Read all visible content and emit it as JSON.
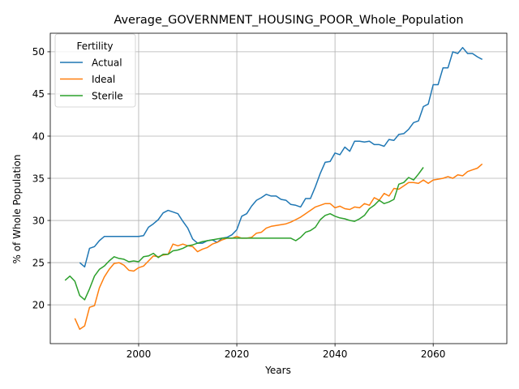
{
  "chart_data": {
    "type": "line",
    "title": "Average_GOVERNMENT_HOUSING_POOR_Whole_Population",
    "xlabel": "Years",
    "ylabel": "% of Whole Population",
    "xlim": [
      1982,
      2075
    ],
    "ylim": [
      15.4,
      52.2
    ],
    "x_ticks": [
      2000,
      2020,
      2040,
      2060
    ],
    "y_ticks": [
      20,
      25,
      30,
      35,
      40,
      45,
      50
    ],
    "grid": true,
    "legend": {
      "title": "Fertility",
      "placement": "top-left"
    },
    "series": [
      {
        "name": "Actual",
        "color": "#1f77b4",
        "points": [
          [
            1988,
            25.0
          ],
          [
            1989,
            24.5
          ],
          [
            1990,
            26.7
          ],
          [
            1991,
            26.9
          ],
          [
            1992,
            27.6
          ],
          [
            1993,
            28.1
          ],
          [
            1994,
            28.1
          ],
          [
            1995,
            28.1
          ],
          [
            1996,
            28.1
          ],
          [
            1997,
            28.1
          ],
          [
            1998,
            28.1
          ],
          [
            1999,
            28.1
          ],
          [
            2000,
            28.1
          ],
          [
            2001,
            28.2
          ],
          [
            2002,
            29.2
          ],
          [
            2003,
            29.6
          ],
          [
            2004,
            30.1
          ],
          [
            2005,
            30.9
          ],
          [
            2006,
            31.2
          ],
          [
            2007,
            31.0
          ],
          [
            2008,
            30.8
          ],
          [
            2009,
            29.9
          ],
          [
            2010,
            29.1
          ],
          [
            2011,
            27.8
          ],
          [
            2012,
            27.3
          ],
          [
            2013,
            27.3
          ],
          [
            2014,
            27.6
          ],
          [
            2015,
            27.7
          ],
          [
            2016,
            27.4
          ],
          [
            2017,
            27.9
          ],
          [
            2018,
            28.0
          ],
          [
            2019,
            28.3
          ],
          [
            2020,
            28.9
          ],
          [
            2021,
            30.5
          ],
          [
            2022,
            30.8
          ],
          [
            2023,
            31.7
          ],
          [
            2024,
            32.4
          ],
          [
            2025,
            32.7
          ],
          [
            2026,
            33.1
          ],
          [
            2027,
            32.9
          ],
          [
            2028,
            32.9
          ],
          [
            2029,
            32.5
          ],
          [
            2030,
            32.4
          ],
          [
            2031,
            31.9
          ],
          [
            2032,
            31.8
          ],
          [
            2033,
            31.6
          ],
          [
            2034,
            32.6
          ],
          [
            2035,
            32.6
          ],
          [
            2036,
            34.0
          ],
          [
            2037,
            35.6
          ],
          [
            2038,
            36.9
          ],
          [
            2039,
            37.0
          ],
          [
            2040,
            38.0
          ],
          [
            2041,
            37.8
          ],
          [
            2042,
            38.7
          ],
          [
            2043,
            38.2
          ],
          [
            2044,
            39.4
          ],
          [
            2045,
            39.4
          ],
          [
            2046,
            39.3
          ],
          [
            2047,
            39.4
          ],
          [
            2048,
            39.0
          ],
          [
            2049,
            39.0
          ],
          [
            2050,
            38.8
          ],
          [
            2051,
            39.6
          ],
          [
            2052,
            39.5
          ],
          [
            2053,
            40.2
          ],
          [
            2054,
            40.3
          ],
          [
            2055,
            40.8
          ],
          [
            2056,
            41.6
          ],
          [
            2057,
            41.8
          ],
          [
            2058,
            43.5
          ],
          [
            2059,
            43.8
          ],
          [
            2060,
            46.1
          ],
          [
            2061,
            46.1
          ],
          [
            2062,
            48.1
          ],
          [
            2063,
            48.1
          ],
          [
            2064,
            50.0
          ],
          [
            2065,
            49.8
          ],
          [
            2066,
            50.5
          ],
          [
            2067,
            49.8
          ],
          [
            2068,
            49.8
          ],
          [
            2069,
            49.4
          ],
          [
            2070,
            49.1
          ]
        ]
      },
      {
        "name": "Ideal",
        "color": "#ff7f0e",
        "points": [
          [
            1987,
            18.4
          ],
          [
            1988,
            17.1
          ],
          [
            1989,
            17.5
          ],
          [
            1990,
            19.7
          ],
          [
            1991,
            19.9
          ],
          [
            1992,
            22.0
          ],
          [
            1993,
            23.3
          ],
          [
            1994,
            24.2
          ],
          [
            1995,
            24.9
          ],
          [
            1996,
            25.0
          ],
          [
            1997,
            24.7
          ],
          [
            1998,
            24.1
          ],
          [
            1999,
            24.0
          ],
          [
            2000,
            24.4
          ],
          [
            2001,
            24.6
          ],
          [
            2002,
            25.2
          ],
          [
            2003,
            25.8
          ],
          [
            2004,
            25.7
          ],
          [
            2005,
            25.9
          ],
          [
            2006,
            26.0
          ],
          [
            2007,
            27.2
          ],
          [
            2008,
            27.0
          ],
          [
            2009,
            27.2
          ],
          [
            2010,
            27.0
          ],
          [
            2011,
            26.9
          ],
          [
            2012,
            26.3
          ],
          [
            2013,
            26.6
          ],
          [
            2014,
            26.8
          ],
          [
            2015,
            27.2
          ],
          [
            2016,
            27.4
          ],
          [
            2017,
            27.7
          ],
          [
            2018,
            27.9
          ],
          [
            2019,
            27.9
          ],
          [
            2020,
            28.1
          ],
          [
            2021,
            27.9
          ],
          [
            2022,
            27.9
          ],
          [
            2023,
            28.0
          ],
          [
            2024,
            28.5
          ],
          [
            2025,
            28.6
          ],
          [
            2026,
            29.1
          ],
          [
            2027,
            29.3
          ],
          [
            2028,
            29.4
          ],
          [
            2029,
            29.5
          ],
          [
            2030,
            29.6
          ],
          [
            2031,
            29.8
          ],
          [
            2032,
            30.1
          ],
          [
            2033,
            30.4
          ],
          [
            2034,
            30.8
          ],
          [
            2035,
            31.2
          ],
          [
            2036,
            31.6
          ],
          [
            2037,
            31.8
          ],
          [
            2038,
            32.0
          ],
          [
            2039,
            32.0
          ],
          [
            2040,
            31.5
          ],
          [
            2041,
            31.7
          ],
          [
            2042,
            31.4
          ],
          [
            2043,
            31.3
          ],
          [
            2044,
            31.6
          ],
          [
            2045,
            31.5
          ],
          [
            2046,
            32.0
          ],
          [
            2047,
            31.8
          ],
          [
            2048,
            32.7
          ],
          [
            2049,
            32.4
          ],
          [
            2050,
            33.2
          ],
          [
            2051,
            32.9
          ],
          [
            2052,
            33.8
          ],
          [
            2053,
            33.7
          ],
          [
            2054,
            34.1
          ],
          [
            2055,
            34.5
          ],
          [
            2056,
            34.5
          ],
          [
            2057,
            34.4
          ],
          [
            2058,
            34.8
          ],
          [
            2059,
            34.4
          ],
          [
            2060,
            34.8
          ],
          [
            2061,
            34.9
          ],
          [
            2062,
            35.0
          ],
          [
            2063,
            35.2
          ],
          [
            2064,
            35.0
          ],
          [
            2065,
            35.4
          ],
          [
            2066,
            35.3
          ],
          [
            2067,
            35.8
          ],
          [
            2068,
            36.0
          ],
          [
            2069,
            36.2
          ],
          [
            2070,
            36.7
          ]
        ]
      },
      {
        "name": "Sterile",
        "color": "#2ca02c",
        "points": [
          [
            1985,
            22.9
          ],
          [
            1986,
            23.4
          ],
          [
            1987,
            22.8
          ],
          [
            1988,
            21.1
          ],
          [
            1989,
            20.6
          ],
          [
            1990,
            21.9
          ],
          [
            1991,
            23.4
          ],
          [
            1992,
            24.2
          ],
          [
            1993,
            24.6
          ],
          [
            1994,
            25.2
          ],
          [
            1995,
            25.7
          ],
          [
            1996,
            25.5
          ],
          [
            1997,
            25.4
          ],
          [
            1998,
            25.1
          ],
          [
            1999,
            25.2
          ],
          [
            2000,
            25.1
          ],
          [
            2001,
            25.7
          ],
          [
            2002,
            25.8
          ],
          [
            2003,
            26.1
          ],
          [
            2004,
            25.6
          ],
          [
            2005,
            26.0
          ],
          [
            2006,
            26.0
          ],
          [
            2007,
            26.4
          ],
          [
            2008,
            26.5
          ],
          [
            2009,
            26.7
          ],
          [
            2010,
            27.0
          ],
          [
            2011,
            27.1
          ],
          [
            2012,
            27.3
          ],
          [
            2013,
            27.5
          ],
          [
            2014,
            27.6
          ],
          [
            2015,
            27.7
          ],
          [
            2016,
            27.8
          ],
          [
            2017,
            27.9
          ],
          [
            2018,
            27.9
          ],
          [
            2019,
            27.9
          ],
          [
            2020,
            27.9
          ],
          [
            2021,
            27.9
          ],
          [
            2022,
            27.9
          ],
          [
            2023,
            27.9
          ],
          [
            2024,
            27.9
          ],
          [
            2025,
            27.9
          ],
          [
            2026,
            27.9
          ],
          [
            2027,
            27.9
          ],
          [
            2028,
            27.9
          ],
          [
            2029,
            27.9
          ],
          [
            2030,
            27.9
          ],
          [
            2031,
            27.9
          ],
          [
            2032,
            27.6
          ],
          [
            2033,
            28.0
          ],
          [
            2034,
            28.6
          ],
          [
            2035,
            28.8
          ],
          [
            2036,
            29.2
          ],
          [
            2037,
            30.1
          ],
          [
            2038,
            30.6
          ],
          [
            2039,
            30.8
          ],
          [
            2040,
            30.5
          ],
          [
            2041,
            30.3
          ],
          [
            2042,
            30.2
          ],
          [
            2043,
            30.0
          ],
          [
            2044,
            29.9
          ],
          [
            2045,
            30.2
          ],
          [
            2046,
            30.6
          ],
          [
            2047,
            31.4
          ],
          [
            2048,
            31.8
          ],
          [
            2049,
            32.4
          ],
          [
            2050,
            32.0
          ],
          [
            2051,
            32.2
          ],
          [
            2052,
            32.5
          ],
          [
            2053,
            34.3
          ],
          [
            2054,
            34.5
          ],
          [
            2055,
            35.1
          ],
          [
            2056,
            34.8
          ],
          [
            2057,
            35.5
          ],
          [
            2058,
            36.3
          ]
        ]
      }
    ]
  }
}
